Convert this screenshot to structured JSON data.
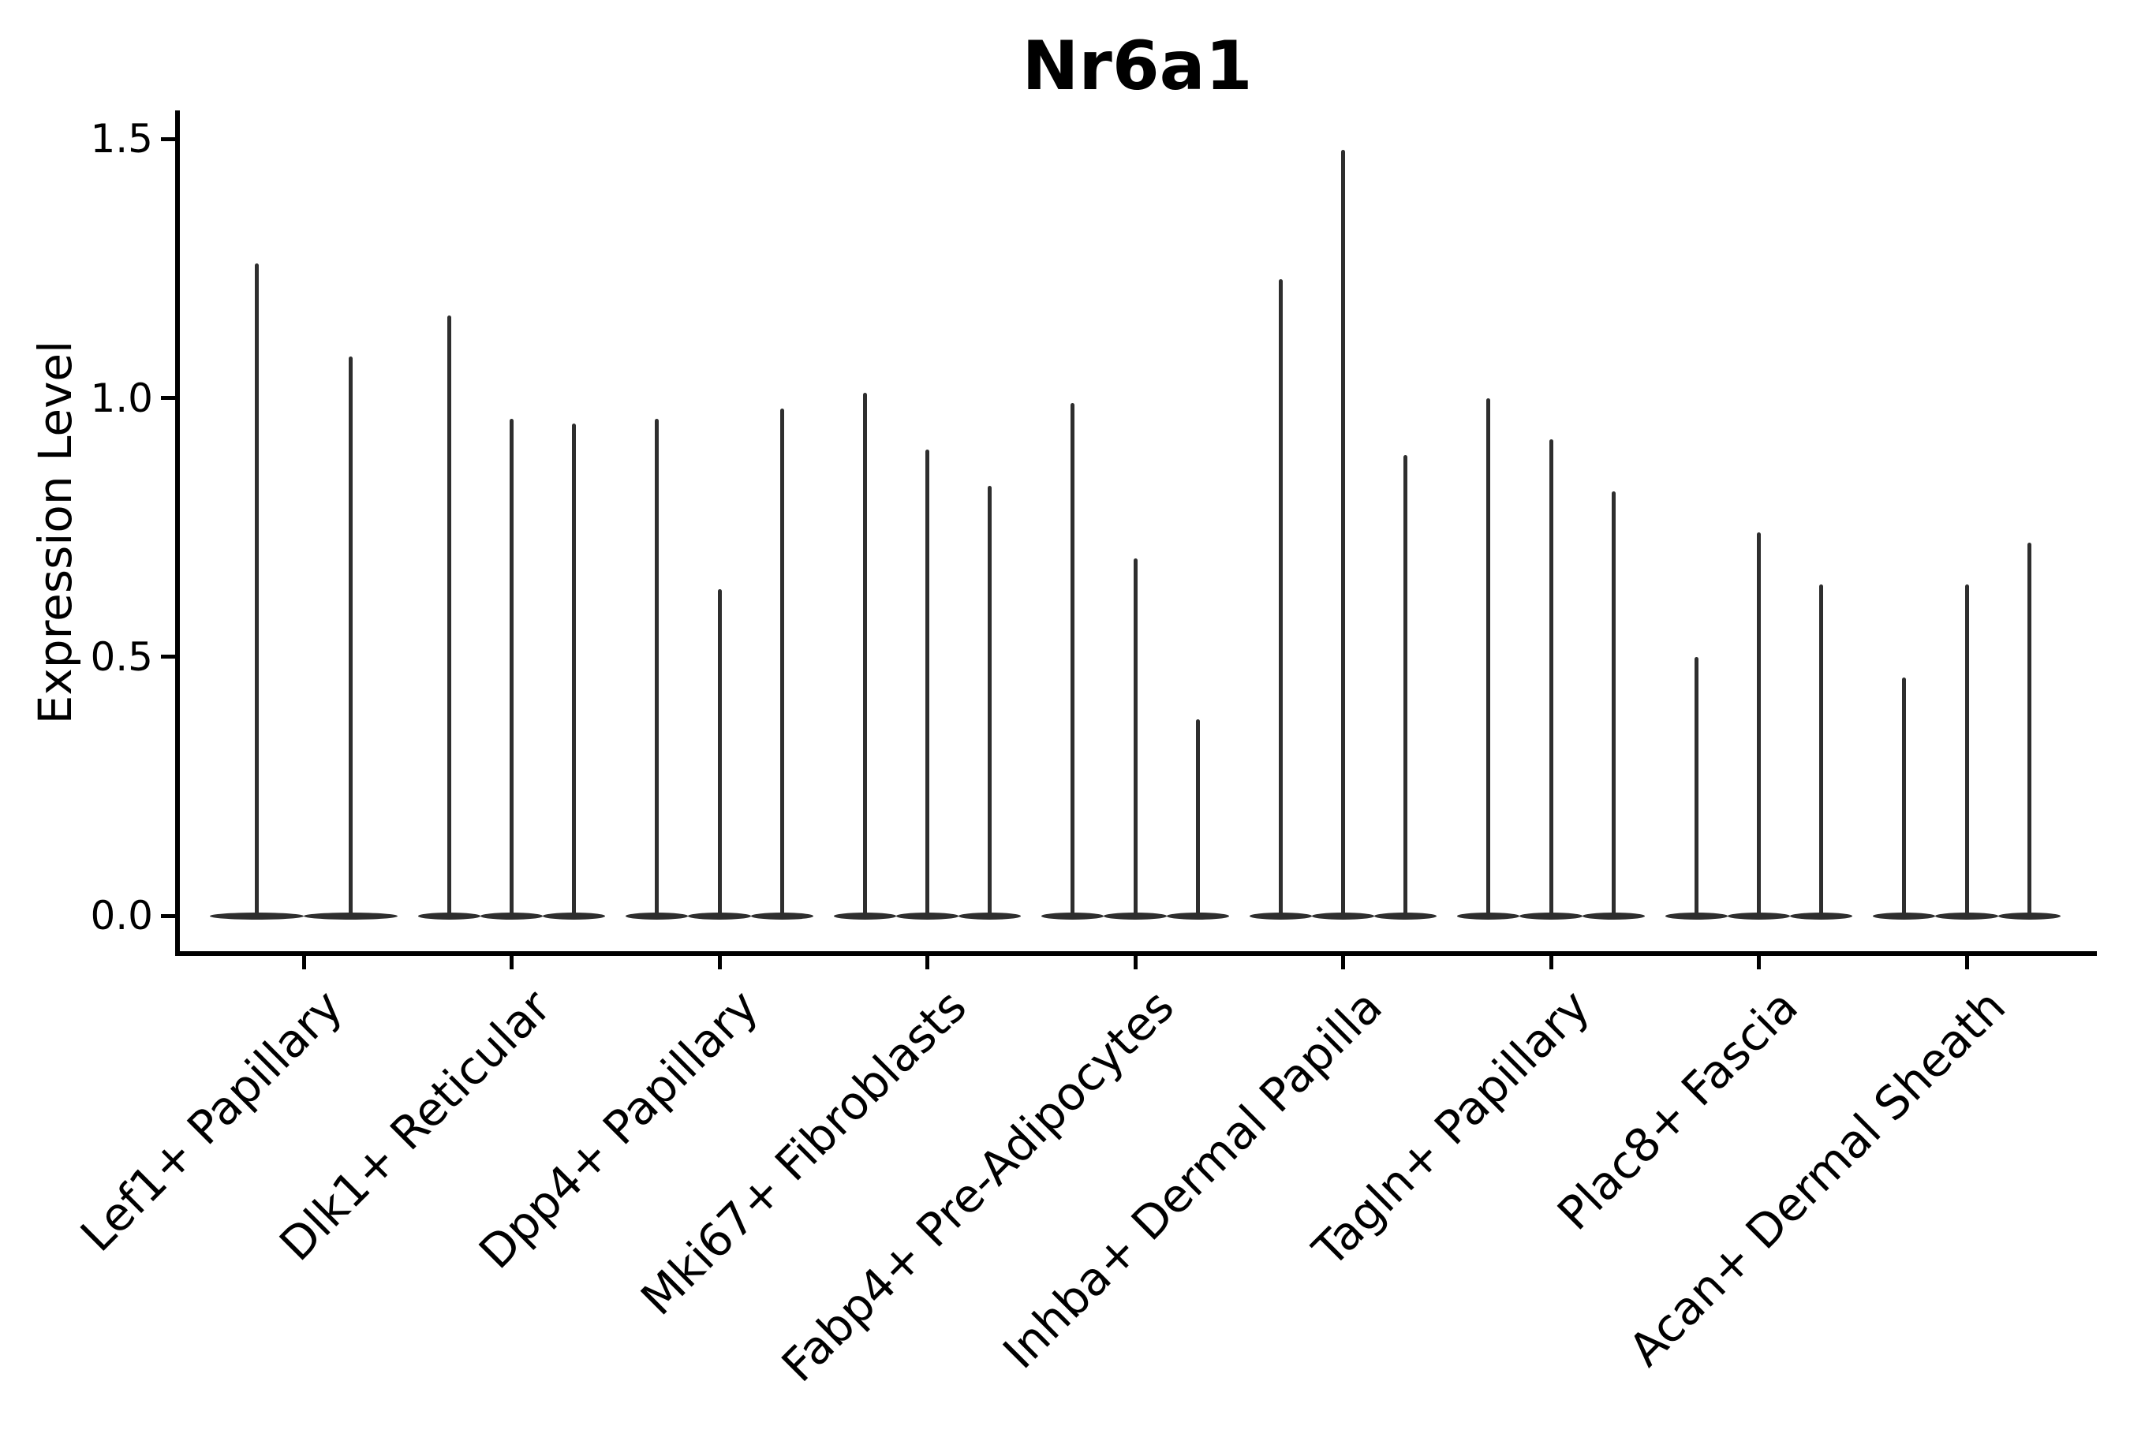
{
  "title": "Nr6a1",
  "y_axis": {
    "label": "Expression Level",
    "tick_labels": [
      "0.0",
      "0.5",
      "1.0",
      "1.5"
    ]
  },
  "colors": {
    "violin": "#2e2e2e",
    "axis": "#000000",
    "text": "#000000",
    "background": "#ffffff"
  },
  "chart_data": {
    "type": "violin",
    "title": "Nr6a1",
    "xlabel": "",
    "ylabel": "Expression Level",
    "ylim": [
      0,
      1.58
    ],
    "yticks": [
      0.0,
      0.5,
      1.0,
      1.5
    ],
    "ytick_labels": [
      "0.0",
      "0.5",
      "1.0",
      "1.5"
    ],
    "grid": false,
    "legend_position": "none",
    "x_tick_rotation_deg": 45,
    "shape_note": "needle violins: nearly all density mass at 0 (flat wide base) with a thin spike rising to the max expression value",
    "categories": [
      "Lef1+ Papillary",
      "Dlk1+ Reticular",
      "Dpp4+ Papillary",
      "Mki67+ Fibroblasts",
      "Fabp4+ Pre-Adipocytes",
      "Inhba+ Dermal Papilla",
      "Tagln+ Papillary",
      "Plac8+ Fascia",
      "Acan+ Dermal Sheath"
    ],
    "groups": [
      {
        "category": "Lef1+ Papillary",
        "violin_max_values": [
          1.26,
          1.08
        ]
      },
      {
        "category": "Dlk1+ Reticular",
        "violin_max_values": [
          1.16,
          0.96,
          0.95
        ]
      },
      {
        "category": "Dpp4+ Papillary",
        "violin_max_values": [
          0.96,
          0.63,
          0.98
        ]
      },
      {
        "category": "Mki67+ Fibroblasts",
        "violin_max_values": [
          1.01,
          0.9,
          0.83
        ]
      },
      {
        "category": "Fabp4+ Pre-Adipocytes",
        "violin_max_values": [
          0.99,
          0.69,
          0.38
        ]
      },
      {
        "category": "Inhba+ Dermal Papilla",
        "violin_max_values": [
          1.23,
          1.48,
          0.89
        ]
      },
      {
        "category": "Tagln+ Papillary",
        "violin_max_values": [
          1.0,
          0.92,
          0.82
        ]
      },
      {
        "category": "Plac8+ Fascia",
        "violin_max_values": [
          0.5,
          0.74,
          0.64
        ]
      },
      {
        "category": "Acan+ Dermal Sheath",
        "violin_max_values": [
          0.46,
          0.64,
          0.72
        ]
      }
    ]
  }
}
